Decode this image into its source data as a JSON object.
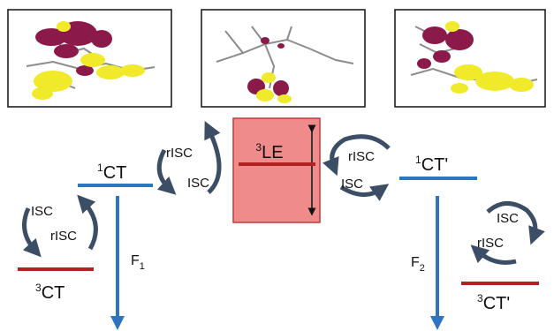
{
  "colors": {
    "level_blue": "#2e75c1",
    "level_red": "#b22222",
    "le_box_fill": "#f08b8b",
    "le_box_stroke": "#c23a3a",
    "cycle_arrow": "#3c4e66",
    "orbital_purple": "#8b1a4a",
    "orbital_yellow": "#f0ea2a",
    "molecule_gray": "#8c8c8c"
  },
  "panels": [
    {
      "name": "orbital-panel-left"
    },
    {
      "name": "orbital-panel-center"
    },
    {
      "name": "orbital-panel-right"
    }
  ],
  "states": {
    "ct1_left": {
      "sup": "1",
      "base": "CT"
    },
    "ct3_left": {
      "sup": "3",
      "base": "CT"
    },
    "le3": {
      "sup": "3",
      "base": "LE"
    },
    "ct1_right": {
      "sup": "1",
      "base": "CT'"
    },
    "ct3_right": {
      "sup": "3",
      "base": "CT'"
    }
  },
  "transitions": {
    "isc": "ISC",
    "risc": "rISC",
    "f1": {
      "base": "F",
      "sub": "1"
    },
    "f2": {
      "base": "F",
      "sub": "2"
    }
  }
}
